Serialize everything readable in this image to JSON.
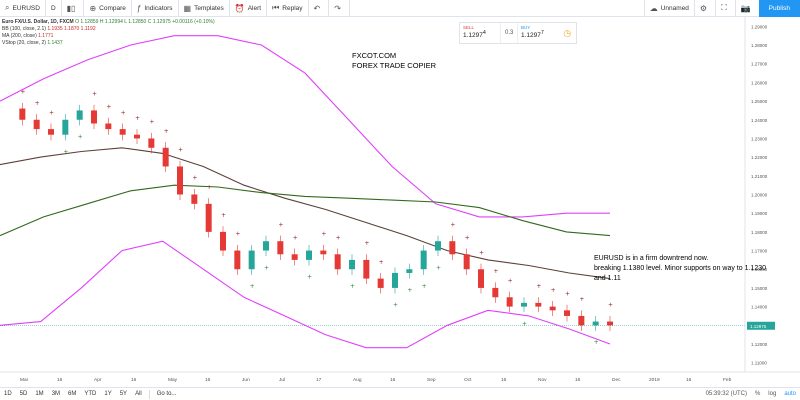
{
  "toolbar": {
    "symbol": "EURUSD",
    "interval": "D",
    "compare_label": "Compare",
    "indicators_label": "Indicators",
    "templates_label": "Templates",
    "alert_label": "Alert",
    "replay_label": "Replay",
    "layout_name": "Unnamed",
    "publish_label": "Publish"
  },
  "legend": {
    "symbol_line": "Euro FX/U.S. Dollar, 1D, FXCM",
    "ohlc": "O 1.12859  H 1.12994  L 1.12850  C 1.12975  +0.00116 (+0.10%)",
    "bb": "BB (100, close, 2.1)",
    "bb_vals": "1.1935  1.1870  1.1192",
    "ma": "MA (200, close)",
    "ma_val": "1.1771",
    "vstop": "VStop (20, close, 2)",
    "vstop_val": "1.1437"
  },
  "trade": {
    "sell_label": "SELL",
    "sell_price": "1.1297",
    "sell_sup": "4",
    "spread": "0.3",
    "buy_label": "BUY",
    "buy_price": "1.1297",
    "buy_sup": "7"
  },
  "annotations": {
    "title1": "FXCOT.COM",
    "title2": "FOREX TRADE COPIER",
    "note1": "EURUSD is in a firm downtrend now.",
    "note2": "breaking 1.1380 level. Minor supports on way to 1.1230",
    "note3": "and 1.11"
  },
  "bottom": {
    "ranges": [
      "1D",
      "5D",
      "1M",
      "3M",
      "6M",
      "YTD",
      "1Y",
      "5Y",
      "All"
    ],
    "goto": "Go to...",
    "time": "05:39:32 (UTC)",
    "pct": "%",
    "log": "log",
    "auto": "auto"
  },
  "chart_data": {
    "type": "line",
    "title": "Euro FX/U.S. Dollar, 1D, FXCM",
    "ylim": [
      1.105,
      1.295
    ],
    "y_ticks": [
      "1.29000",
      "1.28000",
      "1.27000",
      "1.26000",
      "1.25000",
      "1.24000",
      "1.23000",
      "1.22000",
      "1.21000",
      "1.20000",
      "1.19000",
      "1.18000",
      "1.17000",
      "1.16000",
      "1.15000",
      "1.14000",
      "1.13000",
      "1.12000",
      "1.11000"
    ],
    "last_price": "1.12975",
    "x_ticks": [
      "Mar",
      "16",
      "Apr",
      "16",
      "May",
      "16",
      "Jun",
      "Jul",
      "17",
      "Aug",
      "16",
      "Sep",
      "Oct",
      "16",
      "Nov",
      "16",
      "Dec",
      "2019",
      "16",
      "Feb"
    ],
    "series": [
      {
        "name": "EURUSD",
        "color": "#e53935",
        "values": [
          1.246,
          1.24,
          1.235,
          1.232,
          1.24,
          1.245,
          1.238,
          1.235,
          1.232,
          1.23,
          1.225,
          1.215,
          1.2,
          1.195,
          1.18,
          1.17,
          1.16,
          1.17,
          1.175,
          1.168,
          1.165,
          1.17,
          1.168,
          1.16,
          1.165,
          1.155,
          1.15,
          1.158,
          1.16,
          1.17,
          1.175,
          1.168,
          1.16,
          1.15,
          1.145,
          1.14,
          1.142,
          1.14,
          1.138,
          1.135,
          1.13,
          1.132,
          1.13
        ]
      },
      {
        "name": "BB upper",
        "color": "#e040fb",
        "values": [
          1.25,
          1.262,
          1.272,
          1.28,
          1.285,
          1.285,
          1.28,
          1.265,
          1.24,
          1.215,
          1.195,
          1.188,
          1.188,
          1.19,
          1.19
        ]
      },
      {
        "name": "BB lower",
        "color": "#e040fb",
        "values": [
          1.13,
          1.132,
          1.15,
          1.17,
          1.175,
          1.16,
          1.145,
          1.135,
          1.125,
          1.118,
          1.118,
          1.13,
          1.138,
          1.135,
          1.128,
          1.12
        ]
      },
      {
        "name": "MA 200",
        "color": "#5d4037",
        "values": [
          1.216,
          1.22,
          1.223,
          1.225,
          1.222,
          1.215,
          1.205,
          1.198,
          1.192,
          1.185,
          1.178,
          1.17,
          1.165,
          1.162,
          1.158,
          1.155
        ]
      },
      {
        "name": "MA",
        "color": "#33691e",
        "values": [
          1.178,
          1.188,
          1.195,
          1.202,
          1.205,
          1.204,
          1.201,
          1.199,
          1.198,
          1.197,
          1.196,
          1.193,
          1.186,
          1.18,
          1.178
        ]
      }
    ]
  }
}
